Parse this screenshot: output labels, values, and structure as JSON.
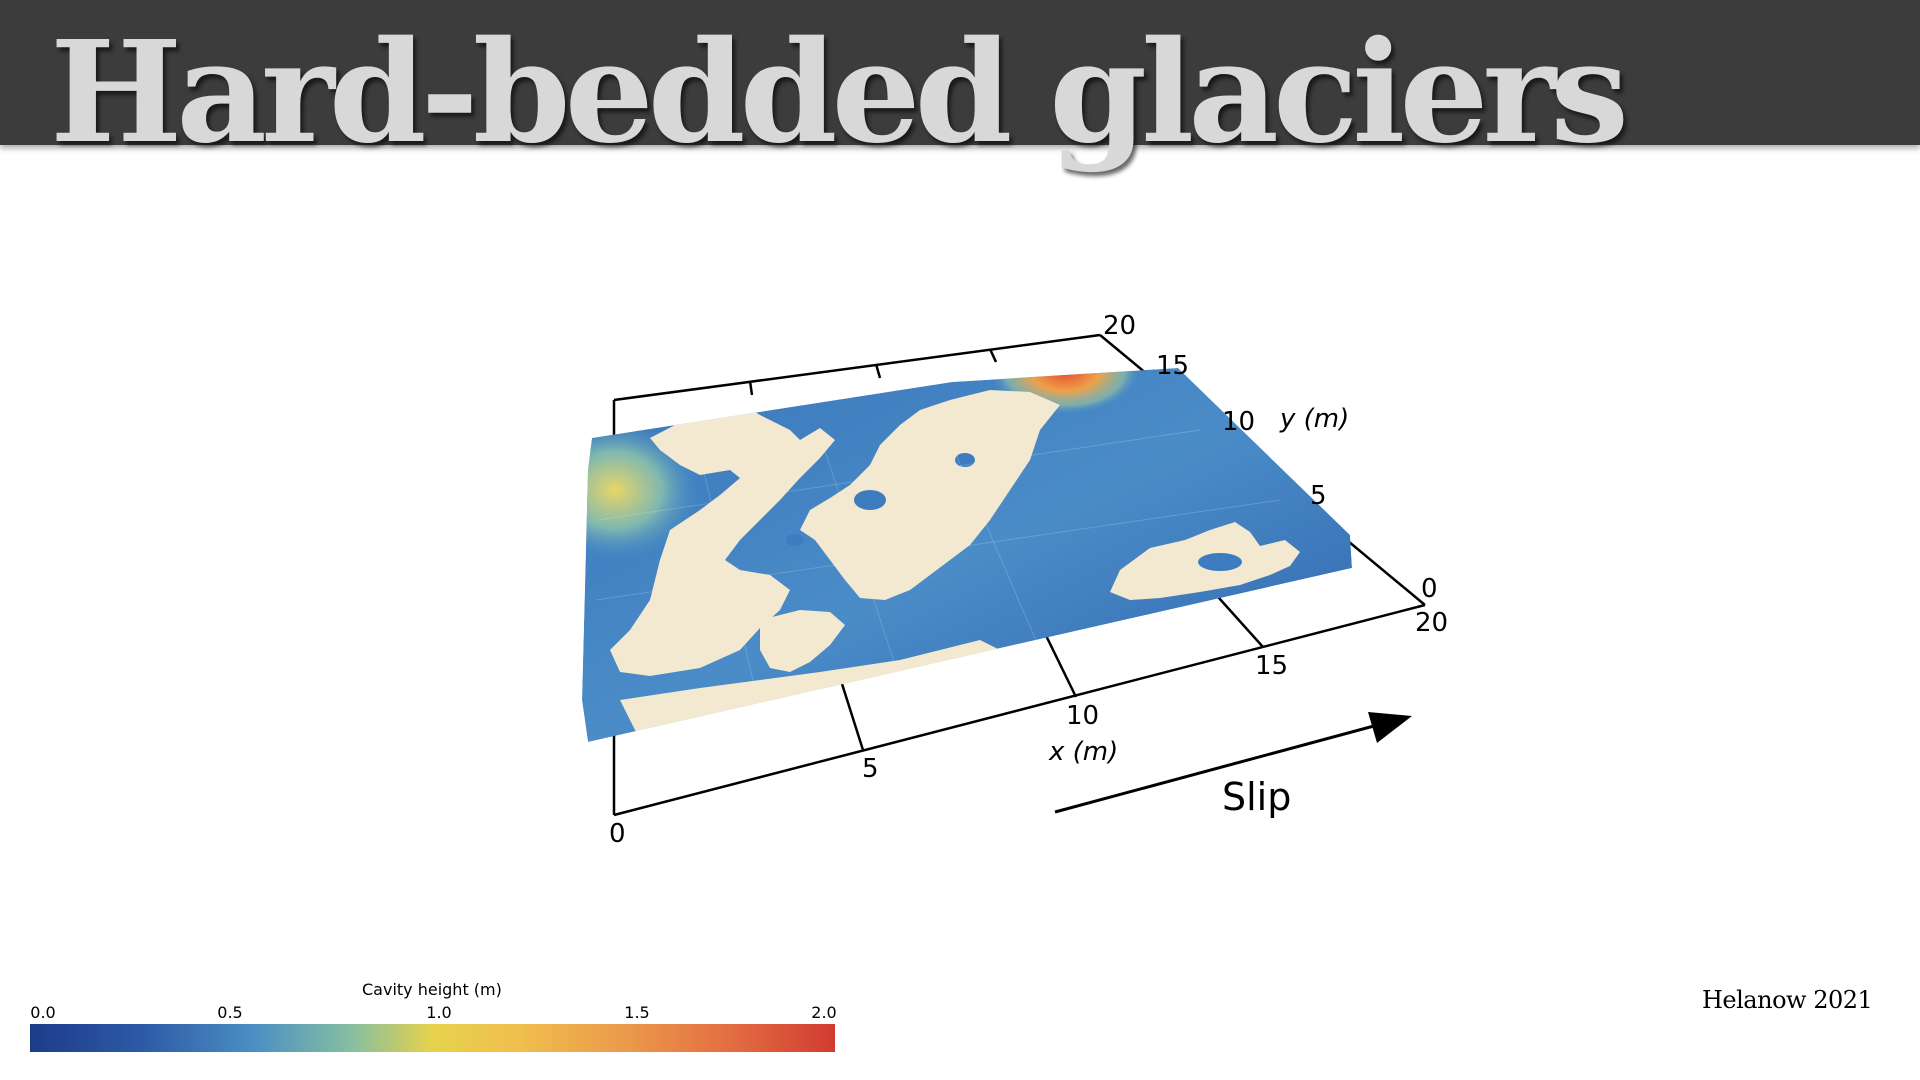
{
  "slide": {
    "title": "Hard-bedded glaciers",
    "citation": "Helanow 2021"
  },
  "figure": {
    "x_axis": {
      "label": "x (m)",
      "ticks": [
        "0",
        "5",
        "10",
        "15",
        "20"
      ]
    },
    "y_axis": {
      "label": "y (m)",
      "ticks": [
        "0",
        "5",
        "10",
        "15",
        "20"
      ]
    },
    "slip_label": "Slip",
    "colors": {
      "bed_contact": "#f3e8d0",
      "cavity_low": "#2d5aa6",
      "cavity_high": "#e3502d"
    }
  },
  "colorbar": {
    "label": "Cavity height (m)",
    "ticks": [
      "0.0",
      "0.5",
      "1.0",
      "1.5",
      "2.0"
    ],
    "range": [
      0.0,
      2.0
    ],
    "colormap": [
      "#1d3c8a",
      "#2d5aa6",
      "#4c90c4",
      "#86bfa0",
      "#e6d24c",
      "#f0c04e",
      "#eb9a4a",
      "#e26a40",
      "#d13b30"
    ]
  }
}
